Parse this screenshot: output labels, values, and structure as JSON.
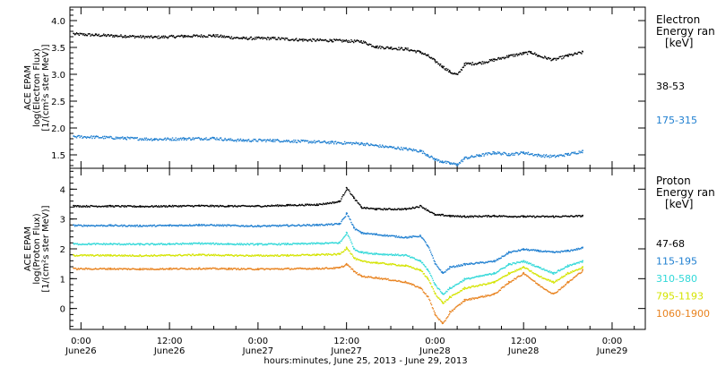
{
  "chart_data": {
    "type": "scatter",
    "xlabel": "hours:minutes, June 25, 2013 - June 29, 2013",
    "x_ticks": [
      {
        "hours": 0,
        "time": "0:00",
        "date": "June26"
      },
      {
        "hours": 12,
        "time": "12:00",
        "date": "June26"
      },
      {
        "hours": 24,
        "time": "0:00",
        "date": "June27"
      },
      {
        "hours": 36,
        "time": "12:00",
        "date": "June27"
      },
      {
        "hours": 48,
        "time": "0:00",
        "date": "June28"
      },
      {
        "hours": 60,
        "time": "12:00",
        "date": "June28"
      },
      {
        "hours": 72,
        "time": "0:00",
        "date": "June29"
      }
    ],
    "x_range_hours": [
      -1.5,
      76.5
    ],
    "panels": [
      {
        "id": "electron",
        "ylabel_lines": [
          "ACE EPAM",
          "log(Electron Flux)",
          "[1/(cm²s ster MeV)]"
        ],
        "ylim": [
          1.25,
          4.25
        ],
        "yticks": [
          1.5,
          2.0,
          2.5,
          3.0,
          3.5,
          4.0
        ],
        "ytick_labels": [
          "1.5",
          "2.0",
          "2.5",
          "3.0",
          "3.5",
          "4.0"
        ],
        "legend_title": [
          "Electron",
          "Energy ran",
          "[keV]"
        ],
        "series": [
          {
            "name": "38-53",
            "color": "#000000",
            "x": [
              -1,
              2,
              6,
              10,
              14,
              18,
              20,
              22,
              26,
              30,
              34,
              38,
              40,
              42,
              44,
              46,
              47,
              48,
              49,
              50,
              51,
              52,
              54,
              56,
              58,
              60,
              61,
              62,
              64,
              66,
              68
            ],
            "y": [
              3.76,
              3.74,
              3.72,
              3.7,
              3.72,
              3.73,
              3.7,
              3.68,
              3.68,
              3.65,
              3.64,
              3.62,
              3.52,
              3.5,
              3.48,
              3.42,
              3.35,
              3.25,
              3.15,
              3.05,
              3.0,
              3.2,
              3.22,
              3.28,
              3.35,
              3.4,
              3.42,
              3.35,
              3.28,
              3.36,
              3.42
            ]
          },
          {
            "name": "175-315",
            "color": "#1f7fd0",
            "x": [
              -1,
              2,
              6,
              10,
              14,
              18,
              20,
              22,
              26,
              30,
              34,
              38,
              40,
              42,
              44,
              46,
              47,
              48,
              49,
              50,
              51,
              52,
              54,
              56,
              58,
              60,
              62,
              64,
              66,
              68
            ],
            "y": [
              1.85,
              1.84,
              1.82,
              1.8,
              1.81,
              1.82,
              1.79,
              1.78,
              1.78,
              1.76,
              1.74,
              1.72,
              1.68,
              1.65,
              1.62,
              1.58,
              1.5,
              1.42,
              1.38,
              1.35,
              1.33,
              1.45,
              1.5,
              1.55,
              1.52,
              1.55,
              1.5,
              1.48,
              1.52,
              1.58
            ]
          }
        ]
      },
      {
        "id": "proton",
        "ylabel_lines": [
          "ACE EPAM",
          "log(Proton Flux)",
          "[1/(cm²s ster MeV)]"
        ],
        "ylim": [
          -0.7,
          4.7
        ],
        "yticks": [
          0,
          1,
          2,
          3,
          4
        ],
        "ytick_labels": [
          "0",
          "1",
          "2",
          "3",
          "4"
        ],
        "legend_title": [
          "Proton",
          "Energy ran",
          "[keV]"
        ],
        "series": [
          {
            "name": "47-68",
            "color": "#000000",
            "x": [
              -1,
              4,
              8,
              12,
              16,
              20,
              24,
              28,
              32,
              35,
              36,
              37,
              38,
              40,
              44,
              46,
              47,
              48,
              49,
              50,
              52,
              56,
              60,
              64,
              68
            ],
            "y": [
              3.45,
              3.45,
              3.44,
              3.45,
              3.46,
              3.45,
              3.45,
              3.48,
              3.5,
              3.6,
              4.05,
              3.7,
              3.4,
              3.35,
              3.35,
              3.45,
              3.3,
              3.15,
              3.15,
              3.12,
              3.1,
              3.12,
              3.1,
              3.1,
              3.12
            ]
          },
          {
            "name": "115-195",
            "color": "#1f7fd0",
            "x": [
              -1,
              4,
              8,
              12,
              16,
              20,
              24,
              28,
              32,
              35,
              36,
              37,
              38,
              40,
              44,
              46,
              47,
              48,
              49,
              50,
              52,
              56,
              58,
              60,
              62,
              64,
              66,
              68
            ],
            "y": [
              2.8,
              2.8,
              2.79,
              2.8,
              2.82,
              2.8,
              2.78,
              2.8,
              2.82,
              2.85,
              3.2,
              2.7,
              2.55,
              2.5,
              2.4,
              2.45,
              2.1,
              1.5,
              1.2,
              1.4,
              1.5,
              1.6,
              1.9,
              2.0,
              1.95,
              1.9,
              1.95,
              2.05
            ]
          },
          {
            "name": "310-580",
            "color": "#30d8d8",
            "x": [
              -1,
              4,
              8,
              12,
              16,
              20,
              24,
              28,
              32,
              35,
              36,
              37,
              38,
              40,
              44,
              46,
              47,
              48,
              49,
              50,
              52,
              56,
              58,
              60,
              62,
              64,
              66,
              68
            ],
            "y": [
              2.18,
              2.18,
              2.17,
              2.18,
              2.2,
              2.18,
              2.17,
              2.18,
              2.2,
              2.22,
              2.55,
              2.0,
              1.9,
              1.85,
              1.8,
              1.6,
              1.3,
              0.8,
              0.5,
              0.7,
              1.0,
              1.2,
              1.5,
              1.6,
              1.4,
              1.2,
              1.45,
              1.6
            ]
          },
          {
            "name": "795-1193",
            "color": "#d4e400",
            "x": [
              -1,
              4,
              8,
              12,
              16,
              20,
              24,
              28,
              32,
              35,
              36,
              37,
              38,
              40,
              44,
              46,
              47,
              48,
              49,
              50,
              52,
              56,
              58,
              60,
              62,
              64,
              66,
              68
            ],
            "y": [
              1.8,
              1.8,
              1.79,
              1.8,
              1.82,
              1.8,
              1.79,
              1.8,
              1.82,
              1.84,
              2.05,
              1.7,
              1.6,
              1.55,
              1.45,
              1.3,
              1.0,
              0.5,
              0.2,
              0.4,
              0.7,
              0.9,
              1.2,
              1.4,
              1.1,
              0.9,
              1.2,
              1.4
            ]
          },
          {
            "name": "1060-1900",
            "color": "#e8821e",
            "x": [
              -1,
              4,
              8,
              12,
              16,
              20,
              24,
              28,
              32,
              35,
              36,
              37,
              38,
              40,
              44,
              46,
              47,
              48,
              49,
              50,
              52,
              56,
              58,
              60,
              62,
              64,
              66,
              68
            ],
            "y": [
              1.35,
              1.35,
              1.34,
              1.35,
              1.36,
              1.35,
              1.34,
              1.35,
              1.36,
              1.38,
              1.5,
              1.25,
              1.1,
              1.05,
              0.9,
              0.7,
              0.4,
              -0.2,
              -0.5,
              -0.1,
              0.3,
              0.5,
              0.9,
              1.2,
              0.8,
              0.5,
              0.9,
              1.3
            ]
          }
        ]
      }
    ]
  }
}
